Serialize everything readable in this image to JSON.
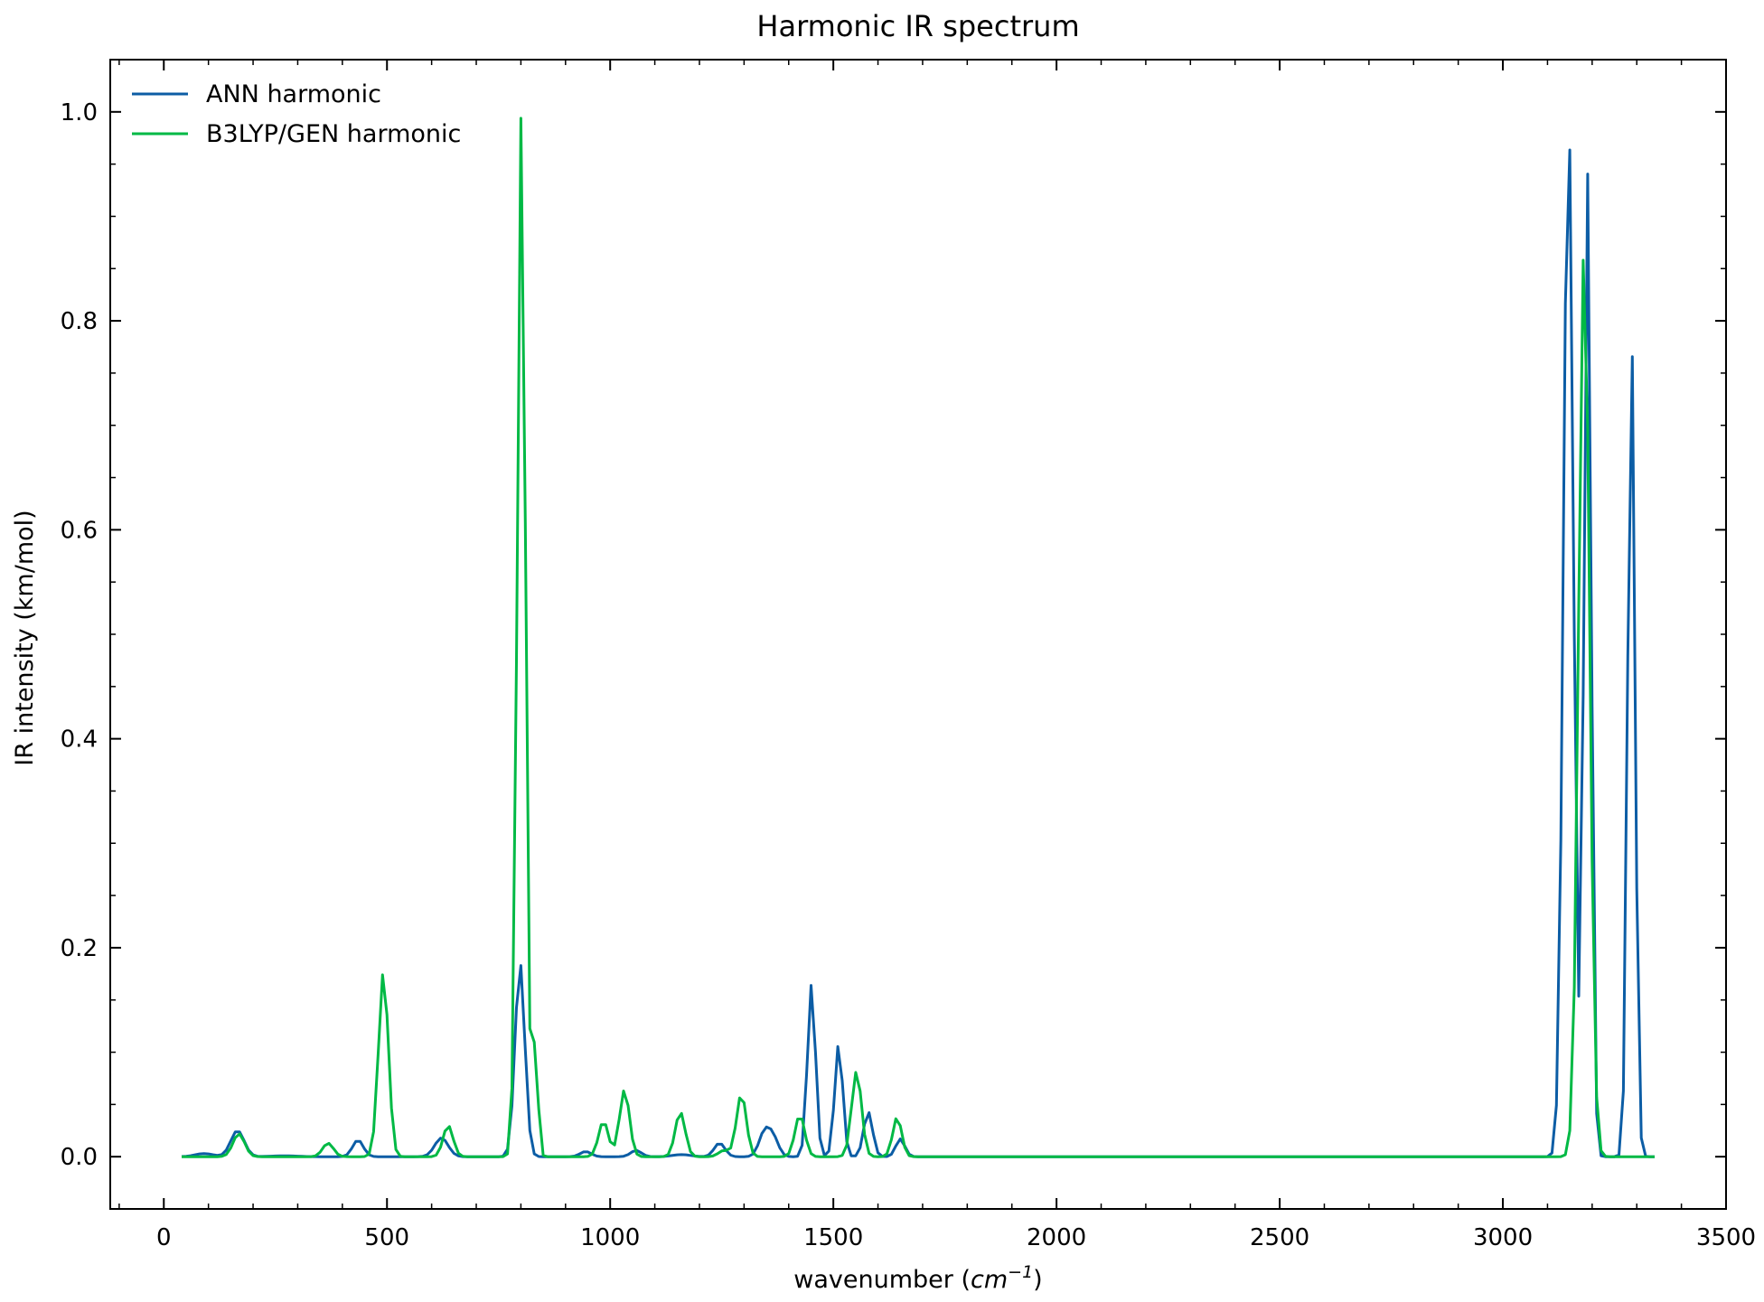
{
  "chart_data": {
    "type": "line",
    "title": "Harmonic IR spectrum",
    "xlabel_prefix": "wavenumber (",
    "xlabel_unit": "cm",
    "xlabel_exp": "−1",
    "xlabel_suffix": ")",
    "ylabel": "IR intensity (km/mol)",
    "xlim": [
      -120,
      3500
    ],
    "ylim": [
      -0.05,
      1.05
    ],
    "xticks": [
      0,
      500,
      1000,
      1500,
      2000,
      2500,
      3000,
      3500
    ],
    "yticks": [
      0.0,
      0.2,
      0.4,
      0.6,
      0.8,
      1.0
    ],
    "ytick_labels": [
      "0.0",
      "0.2",
      "0.4",
      "0.6",
      "0.8",
      "1.0"
    ],
    "grid": false,
    "legend_position": "top-left",
    "x_start": 40,
    "x_end": 3340,
    "x_step": 10,
    "series": [
      {
        "name": "ANN harmonic",
        "color": "#0c5da5",
        "peaks": [
          [
            90,
            0.003,
            20
          ],
          [
            165,
            0.025,
            15
          ],
          [
            270,
            0.0008,
            30
          ],
          [
            435,
            0.016,
            12
          ],
          [
            622,
            0.018,
            15
          ],
          [
            798,
            0.186,
            11
          ],
          [
            945,
            0.005,
            12
          ],
          [
            1058,
            0.006,
            12
          ],
          [
            1160,
            0.002,
            20
          ],
          [
            1245,
            0.013,
            12
          ],
          [
            1345,
            0.022,
            12
          ],
          [
            1365,
            0.018,
            12
          ],
          [
            1451,
            0.165,
            9
          ],
          [
            1512,
            0.108,
            9
          ],
          [
            1578,
            0.043,
            10
          ],
          [
            1650,
            0.017,
            10
          ],
          [
            3147,
            1.0,
            11
          ],
          [
            3190,
            0.94,
            8
          ],
          [
            3288,
            0.79,
            8
          ]
        ]
      },
      {
        "name": "B3LYP/GEN harmonic",
        "color": "#00b945",
        "peaks": [
          [
            168,
            0.022,
            13
          ],
          [
            368,
            0.013,
            12
          ],
          [
            492,
            0.177,
            11
          ],
          [
            637,
            0.03,
            11
          ],
          [
            801,
            1.0,
            9
          ],
          [
            832,
            0.11,
            6
          ],
          [
            985,
            0.034,
            11
          ],
          [
            1032,
            0.064,
            11
          ],
          [
            1157,
            0.043,
            11
          ],
          [
            1255,
            0.006,
            12
          ],
          [
            1294,
            0.06,
            11
          ],
          [
            1425,
            0.04,
            11
          ],
          [
            1552,
            0.082,
            11
          ],
          [
            1643,
            0.038,
            10
          ],
          [
            3182,
            0.87,
            12
          ]
        ]
      }
    ]
  }
}
